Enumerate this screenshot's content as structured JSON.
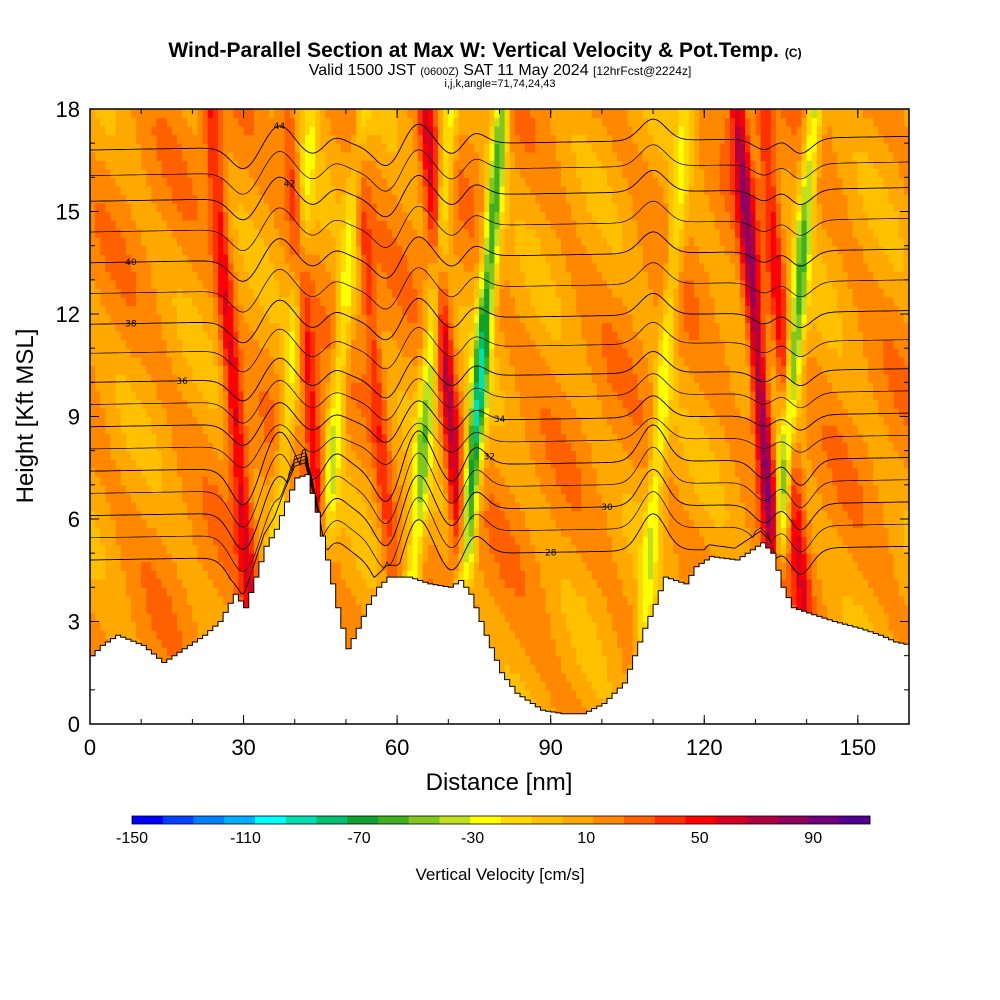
{
  "chart_data": {
    "type": "heatmap",
    "title": "Wind-Parallel Section at Max W: Vertical Velocity & Pot.Temp.",
    "title_mark": "(C)",
    "subtitle": {
      "prefix": "Valid 1500 JST",
      "utc": "(0600Z)",
      "date": "SAT 11 May 2024",
      "fcst": "[12hrFcst@2224z]"
    },
    "index_line": "i,j,k,angle=71,74,24,43",
    "xlabel": "Distance [nm]",
    "ylabel": "Height [Kft MSL]",
    "xlim": [
      0,
      160
    ],
    "ylim": [
      0,
      18
    ],
    "x_ticks": [
      "0",
      "30",
      "60",
      "90",
      "120",
      "150"
    ],
    "y_ticks": [
      "0",
      "3",
      "6",
      "9",
      "12",
      "15",
      "18"
    ],
    "colorbar": {
      "label": "Vertical Velocity [cm/s]",
      "tick_labels": [
        "-150",
        "-110",
        "-70",
        "-30",
        "10",
        "50",
        "90"
      ],
      "tick_values": [
        -150,
        -110,
        -70,
        -30,
        10,
        50,
        90
      ],
      "range": [
        -150,
        110
      ],
      "colors": [
        "#0000ff",
        "#0040ff",
        "#0080ff",
        "#00b0ff",
        "#00ffff",
        "#00e0b0",
        "#00c070",
        "#10a030",
        "#40b020",
        "#80c820",
        "#c0e020",
        "#ffff00",
        "#ffd800",
        "#ffc000",
        "#ffa800",
        "#ff8800",
        "#ff6000",
        "#ff3000",
        "#ff0000",
        "#d80020",
        "#b00040",
        "#900060",
        "#700080",
        "#500090"
      ]
    },
    "wave_bands": [
      {
        "x": 30,
        "w": 50
      },
      {
        "x": 37,
        "w": -35
      },
      {
        "x": 45,
        "w": 40
      },
      {
        "x": 46.5,
        "w": -45
      },
      {
        "x": 58,
        "w": 30
      },
      {
        "x": 64,
        "w": -55
      },
      {
        "x": 72,
        "w": 60
      },
      {
        "x": 74,
        "w": -95
      },
      {
        "x": 110,
        "w": -40
      },
      {
        "x": 133,
        "w": 80
      },
      {
        "x": 135,
        "w": -75
      },
      {
        "x": 138,
        "w": 45
      }
    ],
    "terrain_kft": [
      [
        0,
        2.0
      ],
      [
        2,
        2.3
      ],
      [
        5,
        2.6
      ],
      [
        10,
        2.3
      ],
      [
        14,
        1.8
      ],
      [
        18,
        2.2
      ],
      [
        22,
        2.6
      ],
      [
        25,
        3.0
      ],
      [
        28,
        3.8
      ],
      [
        30,
        3.4
      ],
      [
        32,
        4.3
      ],
      [
        34,
        5.2
      ],
      [
        36,
        5.7
      ],
      [
        38,
        6.5
      ],
      [
        40,
        7.2
      ],
      [
        42,
        7.3
      ],
      [
        44,
        6.2
      ],
      [
        46,
        4.8
      ],
      [
        48,
        3.4
      ],
      [
        50,
        2.2
      ],
      [
        52,
        2.8
      ],
      [
        54,
        3.5
      ],
      [
        56,
        4.0
      ],
      [
        58,
        4.3
      ],
      [
        62,
        4.3
      ],
      [
        66,
        4.1
      ],
      [
        70,
        4.0
      ],
      [
        72,
        4.2
      ],
      [
        74,
        3.8
      ],
      [
        77,
        2.6
      ],
      [
        80,
        1.5
      ],
      [
        83,
        0.9
      ],
      [
        86,
        0.6
      ],
      [
        88,
        0.4
      ],
      [
        92,
        0.3
      ],
      [
        96,
        0.3
      ],
      [
        100,
        0.6
      ],
      [
        104,
        1.2
      ],
      [
        106,
        2.0
      ],
      [
        108,
        2.8
      ],
      [
        110,
        3.5
      ],
      [
        112,
        4.3
      ],
      [
        116,
        4.1
      ],
      [
        118,
        4.6
      ],
      [
        121,
        4.9
      ],
      [
        126,
        4.8
      ],
      [
        131,
        5.3
      ],
      [
        133,
        5.0
      ],
      [
        135,
        4.0
      ],
      [
        137,
        3.4
      ],
      [
        141,
        3.2
      ],
      [
        145,
        3.0
      ],
      [
        150,
        2.8
      ],
      [
        154,
        2.6
      ],
      [
        157,
        2.4
      ],
      [
        160,
        2.3
      ]
    ],
    "theta_levels": [
      {
        "value": 28,
        "y_left": 4.8,
        "label_x": 90
      },
      {
        "value": 30,
        "y_left": 6.1,
        "label_x": 101
      },
      {
        "value": 32,
        "y_left": 7.4,
        "label_x": 78
      },
      {
        "value": 34,
        "y_left": 8.7,
        "label_x": 80
      },
      {
        "value": 36,
        "y_left": 10.0,
        "label_x": 18
      },
      {
        "value": 38,
        "y_left": 11.7,
        "label_x": 8
      },
      {
        "value": 40,
        "y_left": 13.5,
        "label_x": 8
      },
      {
        "value": 42,
        "y_left": 15.3,
        "label_x": 39
      },
      {
        "value": 44,
        "y_left": 16.8,
        "label_x": 37
      }
    ]
  }
}
